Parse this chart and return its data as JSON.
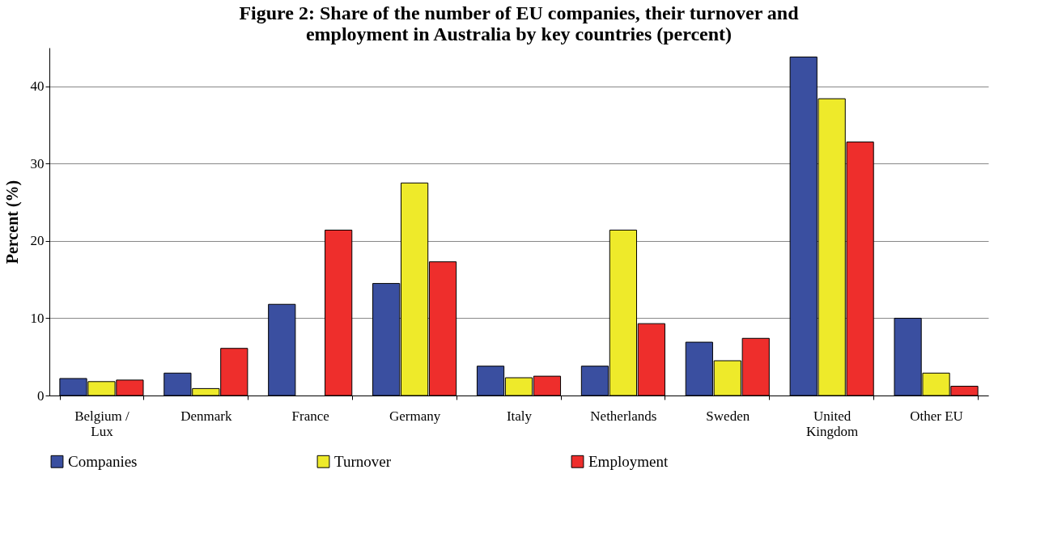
{
  "chart_data": {
    "type": "bar",
    "title": "Figure 2: Share of the number of EU companies, their turnover and employment in Australia by key countries (percent)",
    "ylabel": "Percent (%)",
    "categories": [
      "Belgium / Lux",
      "Denmark",
      "France",
      "Germany",
      "Italy",
      "Netherlands",
      "Sweden",
      "United Kingdom",
      "Other EU"
    ],
    "series": [
      {
        "name": "Companies",
        "color": "#3a4fa0",
        "values": [
          2.2,
          2.9,
          11.8,
          14.5,
          3.8,
          3.8,
          6.9,
          43.8,
          10.0
        ]
      },
      {
        "name": "Turnover",
        "color": "#eeea2a",
        "values": [
          1.8,
          0.9,
          null,
          27.5,
          2.3,
          21.4,
          4.5,
          38.4,
          2.9
        ]
      },
      {
        "name": "Employment",
        "color": "#ee2e2c",
        "values": [
          2.0,
          6.1,
          21.4,
          17.3,
          2.5,
          9.3,
          7.4,
          32.8,
          1.2
        ]
      }
    ],
    "ylim": [
      0,
      45
    ],
    "yticks": [
      0,
      10,
      20,
      30,
      40
    ],
    "grid": "y",
    "legend": "bottom"
  }
}
